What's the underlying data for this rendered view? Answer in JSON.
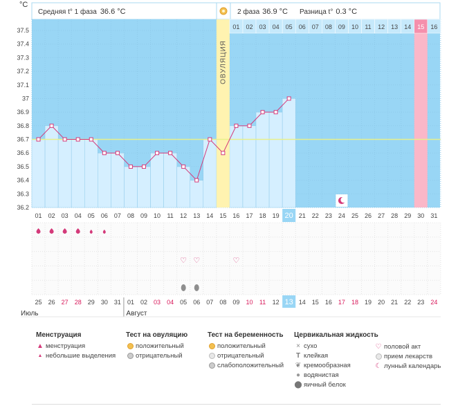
{
  "header": {
    "unit": "°C",
    "phase1_label": "Средняя t° 1 фаза",
    "phase1_value": "36.6 °C",
    "phase2_label": "2 фаза",
    "phase2_value": "36.9 °C",
    "diff_label": "Разница t°",
    "diff_value": "0.3 °C",
    "ovulation_label": "ОВУЛЯЦИЯ"
  },
  "colors": {
    "sky": "#99d6f5",
    "bar": "#d5efff",
    "line": "#d43a7a",
    "ovulation": "#fff3b0",
    "highlight_day": "#fbb7c8",
    "accent_cell": "#99d6f5",
    "coverline": "#e8f08a"
  },
  "chart_data": {
    "type": "line",
    "ylabel": "°C",
    "ylim": [
      36.2,
      37.5
    ],
    "yticks": [
      "37.5",
      "37.4",
      "37.3",
      "37.2",
      "37.1",
      "37",
      "36.9",
      "36.8",
      "36.7",
      "36.6",
      "36.5",
      "36.4",
      "36.3",
      "36.2"
    ],
    "coverline": 36.7,
    "cycle_days": [
      "01",
      "02",
      "03",
      "04",
      "05",
      "06",
      "07",
      "08",
      "09",
      "10",
      "11",
      "12",
      "13",
      "14",
      "15",
      "16",
      "17",
      "18",
      "19",
      "20",
      "21",
      "22",
      "23",
      "24",
      "25",
      "26",
      "27",
      "28",
      "29",
      "30",
      "31"
    ],
    "temperatures": [
      36.7,
      36.8,
      36.7,
      36.7,
      36.7,
      36.6,
      36.6,
      36.5,
      36.5,
      36.6,
      36.6,
      36.5,
      36.4,
      36.7,
      36.6,
      36.8,
      36.8,
      36.9,
      36.9,
      37.0
    ],
    "ovulation_day": "15",
    "current_day": "20",
    "phase2_days": [
      "01",
      "02",
      "03",
      "04",
      "05",
      "06",
      "07",
      "08",
      "09",
      "10",
      "11",
      "12",
      "13",
      "14",
      "15",
      "16"
    ],
    "phase2_highlight": "15",
    "calendar_dates": [
      "25",
      "26",
      "27",
      "28",
      "29",
      "30",
      "31",
      "01",
      "02",
      "03",
      "04",
      "05",
      "06",
      "07",
      "08",
      "09",
      "10",
      "11",
      "12",
      "13",
      "14",
      "15",
      "16",
      "17",
      "18",
      "19",
      "20",
      "21",
      "22",
      "23",
      "24"
    ],
    "calendar_red": [
      "27",
      "28",
      "03",
      "04",
      "10",
      "11",
      "17",
      "18",
      "24"
    ],
    "current_date": "13",
    "months": [
      "Июль",
      "Август"
    ],
    "menstruation": [
      "heavy",
      "heavy",
      "heavy",
      "heavy",
      "light",
      "light"
    ],
    "ovulation_test_positive_days": [],
    "intercourse_days": [
      "12",
      "13",
      "16"
    ],
    "lunar_day": "24",
    "fluid_days": [
      "12",
      "13"
    ]
  },
  "legend": {
    "menstruation": {
      "title": "Менструация",
      "items": [
        "менструация",
        "небольшие выделения"
      ]
    },
    "ovulation_test": {
      "title": "Тест на овуляцию",
      "items": [
        "положительный",
        "отрицательный"
      ]
    },
    "pregnancy_test": {
      "title": "Тест на беременность",
      "items": [
        "положительный",
        "отрицательный",
        "слабоположительный"
      ]
    },
    "cervical_fluid": {
      "title": "Цервикальная жидкость",
      "items": [
        "сухо",
        "клейкая",
        "кремообразная",
        "водянистая",
        "яичный белок"
      ]
    },
    "other": {
      "items": [
        "половой акт",
        "прием лекарств",
        "лунный календарь"
      ]
    }
  },
  "icons": {
    "menstruation": "drop-icon",
    "spotting": "small-drop-icon",
    "intercourse": "heart-icon",
    "lunar": "moon-icon",
    "sun": "sun-icon",
    "fluid": "fluid-drop-icon"
  }
}
